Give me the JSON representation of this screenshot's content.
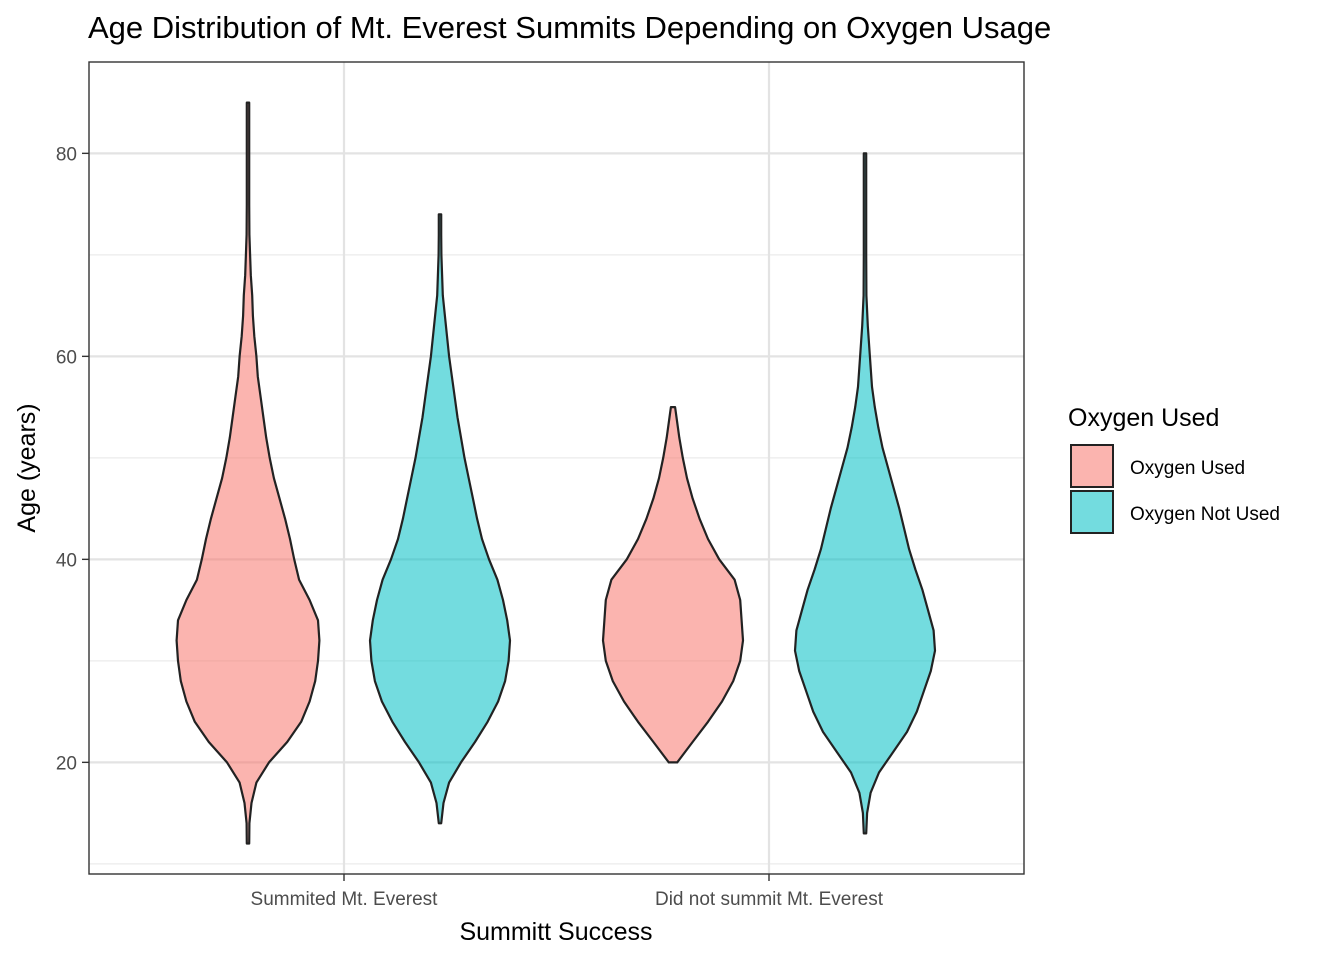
{
  "chart_data": {
    "type": "violin",
    "title": "Age Distribution of Mt. Everest Summits Depending on Oxygen Usage",
    "xlabel": "Summitt Success",
    "ylabel": "Age (years)",
    "categories": [
      "Summited Mt. Everest",
      "Did not summit Mt. Everest"
    ],
    "ylim": [
      9,
      89
    ],
    "yticks": [
      20,
      40,
      60,
      80
    ],
    "grid": true,
    "legend": {
      "title": "Oxygen Used",
      "position": "right",
      "entries": [
        {
          "label": "Oxygen Used",
          "color": "#F8766D"
        },
        {
          "label": "Oxygen Not Used",
          "color": "#00BFC4"
        }
      ]
    },
    "series": [
      {
        "name": "Oxygen Used",
        "color": "#F8766D",
        "violins": [
          {
            "category": "Summited Mt. Everest",
            "profile": [
              [
                12,
                0.01
              ],
              [
                14,
                0.02
              ],
              [
                16,
                0.05
              ],
              [
                18,
                0.12
              ],
              [
                20,
                0.3
              ],
              [
                22,
                0.56
              ],
              [
                24,
                0.76
              ],
              [
                26,
                0.88
              ],
              [
                28,
                0.96
              ],
              [
                30,
                1.0
              ],
              [
                32,
                1.02
              ],
              [
                34,
                1.0
              ],
              [
                36,
                0.88
              ],
              [
                38,
                0.73
              ],
              [
                40,
                0.66
              ],
              [
                42,
                0.6
              ],
              [
                44,
                0.53
              ],
              [
                46,
                0.45
              ],
              [
                48,
                0.37
              ],
              [
                50,
                0.31
              ],
              [
                52,
                0.26
              ],
              [
                54,
                0.22
              ],
              [
                56,
                0.18
              ],
              [
                58,
                0.14
              ],
              [
                60,
                0.12
              ],
              [
                62,
                0.09
              ],
              [
                64,
                0.07
              ],
              [
                66,
                0.06
              ],
              [
                68,
                0.04
              ],
              [
                70,
                0.03
              ],
              [
                72,
                0.02
              ],
              [
                75,
                0.01
              ],
              [
                80,
                0.005
              ],
              [
                85,
                0.005
              ]
            ]
          },
          {
            "category": "Did not summit Mt. Everest",
            "profile": [
              [
                20,
                0.06
              ],
              [
                22,
                0.28
              ],
              [
                24,
                0.5
              ],
              [
                26,
                0.7
              ],
              [
                28,
                0.86
              ],
              [
                30,
                0.96
              ],
              [
                32,
                1.0
              ],
              [
                34,
                0.98
              ],
              [
                36,
                0.96
              ],
              [
                38,
                0.88
              ],
              [
                40,
                0.66
              ],
              [
                42,
                0.5
              ],
              [
                44,
                0.38
              ],
              [
                46,
                0.28
              ],
              [
                48,
                0.2
              ],
              [
                50,
                0.14
              ],
              [
                52,
                0.09
              ],
              [
                54,
                0.05
              ],
              [
                55,
                0.03
              ]
            ]
          }
        ]
      },
      {
        "name": "Oxygen Not Used",
        "color": "#00BFC4",
        "violins": [
          {
            "category": "Summited Mt. Everest",
            "profile": [
              [
                14,
                0.01
              ],
              [
                16,
                0.05
              ],
              [
                18,
                0.13
              ],
              [
                20,
                0.3
              ],
              [
                22,
                0.5
              ],
              [
                24,
                0.68
              ],
              [
                26,
                0.83
              ],
              [
                28,
                0.93
              ],
              [
                30,
                0.98
              ],
              [
                32,
                1.0
              ],
              [
                34,
                0.96
              ],
              [
                36,
                0.9
              ],
              [
                38,
                0.82
              ],
              [
                40,
                0.7
              ],
              [
                42,
                0.6
              ],
              [
                44,
                0.53
              ],
              [
                46,
                0.47
              ],
              [
                48,
                0.41
              ],
              [
                50,
                0.35
              ],
              [
                52,
                0.3
              ],
              [
                54,
                0.25
              ],
              [
                56,
                0.21
              ],
              [
                58,
                0.17
              ],
              [
                60,
                0.13
              ],
              [
                62,
                0.1
              ],
              [
                64,
                0.07
              ],
              [
                66,
                0.04
              ],
              [
                68,
                0.03
              ],
              [
                70,
                0.02
              ],
              [
                72,
                0.01
              ],
              [
                74,
                0.005
              ]
            ]
          },
          {
            "category": "Did not summit Mt. Everest",
            "profile": [
              [
                13,
                0.01
              ],
              [
                15,
                0.03
              ],
              [
                17,
                0.08
              ],
              [
                19,
                0.2
              ],
              [
                21,
                0.4
              ],
              [
                23,
                0.6
              ],
              [
                25,
                0.74
              ],
              [
                27,
                0.84
              ],
              [
                29,
                0.94
              ],
              [
                31,
                1.0
              ],
              [
                33,
                0.98
              ],
              [
                35,
                0.9
              ],
              [
                37,
                0.82
              ],
              [
                39,
                0.72
              ],
              [
                41,
                0.63
              ],
              [
                43,
                0.56
              ],
              [
                45,
                0.49
              ],
              [
                47,
                0.41
              ],
              [
                49,
                0.33
              ],
              [
                51,
                0.25
              ],
              [
                53,
                0.19
              ],
              [
                55,
                0.14
              ],
              [
                57,
                0.1
              ],
              [
                60,
                0.07
              ],
              [
                63,
                0.04
              ],
              [
                66,
                0.02
              ],
              [
                70,
                0.01
              ],
              [
                75,
                0.005
              ],
              [
                80,
                0.005
              ]
            ]
          }
        ]
      }
    ]
  }
}
